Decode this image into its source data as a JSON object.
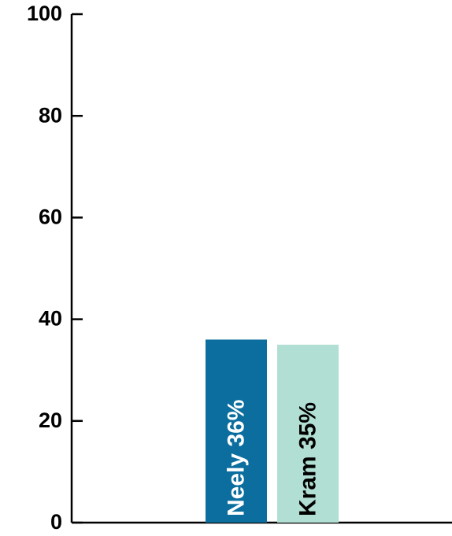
{
  "chart_data": {
    "type": "bar",
    "title": "",
    "xlabel": "",
    "ylabel": "",
    "ylim": [
      0,
      100
    ],
    "yticks": [
      0,
      20,
      40,
      60,
      80,
      100
    ],
    "ytick_labels": [
      "0",
      "20",
      "40",
      "60",
      "80",
      "100"
    ],
    "grid": false,
    "legend": "none",
    "categories": [
      "Neely",
      "Kram"
    ],
    "values": [
      36,
      35
    ],
    "bar_labels": [
      "Neely 36%",
      "Kram 35%"
    ],
    "colors": [
      "#0b6e9e",
      "#b2dfd3"
    ],
    "label_colors": [
      "#ffffff",
      "#000000"
    ]
  }
}
